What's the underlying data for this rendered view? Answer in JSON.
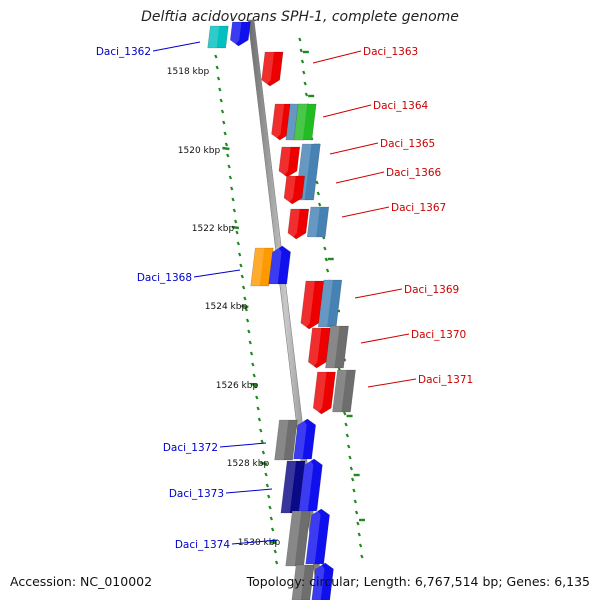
{
  "title": "Delftia acidovorans SPH-1, complete genome",
  "accession_text": "Accession: NC_010002",
  "summary_text": "Topology: circular; Length: 6,767,514 bp; Genes: 6,135",
  "colors": {
    "forward_label": "#cc0000",
    "reverse_label": "#0000cc",
    "backbone": "#888888",
    "tick": "#228822",
    "red": "#ee0000",
    "blue": "#1010ee",
    "navy": "#0a0a88",
    "steel": "#4682b4",
    "gray": "#6e6e6e",
    "green": "#22bb22",
    "orange": "#ff9900",
    "cyan": "#00c0c0"
  },
  "kbp_labels": [
    "1518 kbp",
    "1520 kbp",
    "1522 kbp",
    "1524 kbp",
    "1526 kbp",
    "1528 kbp",
    "1530 kbp"
  ],
  "genes": [
    {
      "name": "Daci_1362",
      "strand": "reverse"
    },
    {
      "name": "Daci_1363",
      "strand": "forward"
    },
    {
      "name": "Daci_1364",
      "strand": "forward"
    },
    {
      "name": "Daci_1365",
      "strand": "forward"
    },
    {
      "name": "Daci_1366",
      "strand": "forward"
    },
    {
      "name": "Daci_1367",
      "strand": "forward"
    },
    {
      "name": "Daci_1368",
      "strand": "reverse"
    },
    {
      "name": "Daci_1369",
      "strand": "forward"
    },
    {
      "name": "Daci_1370",
      "strand": "forward"
    },
    {
      "name": "Daci_1371",
      "strand": "forward"
    },
    {
      "name": "Daci_1372",
      "strand": "reverse"
    },
    {
      "name": "Daci_1373",
      "strand": "reverse"
    },
    {
      "name": "Daci_1374",
      "strand": "reverse"
    }
  ]
}
